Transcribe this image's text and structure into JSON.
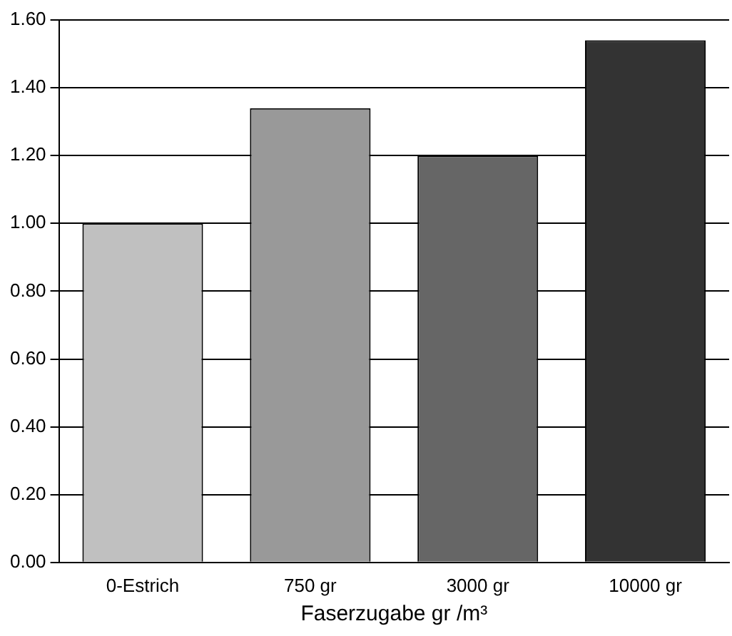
{
  "chart_data": {
    "type": "bar",
    "xlabel": "Faserzugabe gr /m³",
    "categories": [
      "0-Estrich",
      "750 gr",
      "3000 gr",
      "10000 gr"
    ],
    "values": [
      1.0,
      1.34,
      1.2,
      1.54
    ],
    "colors": [
      "#c0c0c0",
      "#999999",
      "#666666",
      "#333333"
    ],
    "ylim": [
      0,
      1.6
    ],
    "yticks": [
      {
        "value": 0,
        "label": "0.00"
      },
      {
        "value": 0.2,
        "label": "0.20"
      },
      {
        "value": 0.4,
        "label": "0.40"
      },
      {
        "value": 0.6,
        "label": "0.60"
      },
      {
        "value": 0.8,
        "label": "0.80"
      },
      {
        "value": 1,
        "label": "1.00"
      },
      {
        "value": 1.2,
        "label": "1.20"
      },
      {
        "value": 1.4,
        "label": "1.40"
      },
      {
        "value": 1.6,
        "label": "1.60"
      }
    ],
    "grid": "y",
    "legend": false
  }
}
